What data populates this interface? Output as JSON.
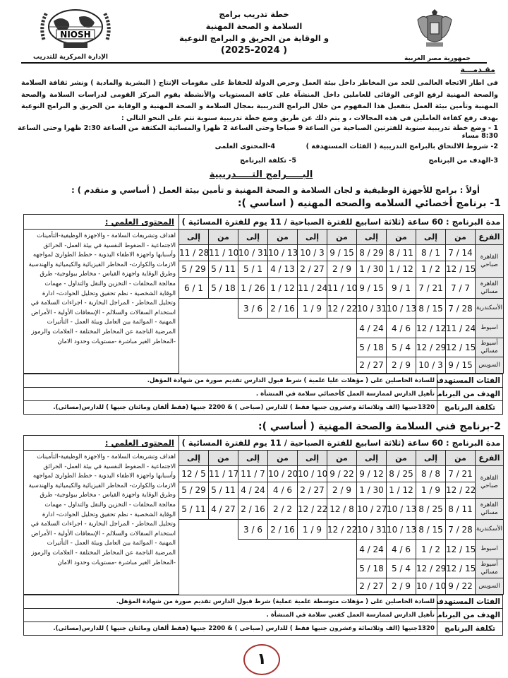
{
  "header": {
    "title_lines": [
      "خطة تدريب برامج",
      "السلامة و الصحة المهنية",
      "و الوقاية من الحريق و البرامج النوعية"
    ],
    "year": "( 2025-2024)",
    "org_right": "جمهورية مصر العربية",
    "org_left": "الإدارة المركزية للتدريب",
    "logo_left_text": "NIOSH"
  },
  "intro": {
    "title": "مقـدمـــة",
    "paragraph": "فى اطار الاتجاه العالمى للحد من المخاطر داخل بيئة العمل وحرص الدولة للحفاظ على مقومات الإنتاج ( البشرية والمادية ) ونشر ثقافة السلامة والصحة المهنية لرفع الوعى الوقائى للعاملين داخل المنشآة على كافة المستويات والأنشطة يقوم المركز القومى لدراسات السلامة والصحة المهنية وتأمين بيئة العمل بتفعيل هذا المفهوم من خلال البرامج التدريبية بمجال السلامة و الصحة المهنية و الوقاية من الحريق و البرامج النوعية بهدف رفع كفاءة العاملين فى هذه المجالات ، و يتم ذلك عن طريق وضع خطة تدريبية سنوية تتم على النحو التالى :",
    "item1": "1 - وضع خطة تدريبية سنوية للفترتين الصباحية من الساعة 9 صباحا وحتى الساعة 2 ظهرا والمسائية المكثفة من الساعة 2:30 ظهرا وحتى الساعة 8:30 مساء",
    "item2": "2-  شروط الالتحاق بالبرامج التدريبية  ( الفئات المستهدفة )",
    "item3": "3-الهدف من البرنامج",
    "item4": "4-المحتوى العلمى",
    "item5": "5- تكلفة البرنامج"
  },
  "section_title": "البـــــرامج التـــــدريبية",
  "first_heading": "أولاً  : برامج للأجهزة الوظيفية و لجان السلامة و الصحة المهنية و تأمين بيئة العمل ( أساسي و متقدم ) :",
  "content_text": "اهداف  وتشريعات السلامة - والاجهزة الوظيفية-التأمينات الاجتماعية - الضغوط النفسية في بيئة العمل- الحرائق وأسبابها واجهزة الاطفاء اليدوية - خطط الطوارئ لمواجهه الازمات والكوارث-  المخاطر الفيزيائية والكيميائية والهندسية وطرق الوقاية واجهزة القياس - مخاطر بيولوجية- طرق معالجة المخلفات - التخزين والنقل والتداول - مهمات الوقاية الشخصية - نظم تحقيق وتحليل الحوادث- ادارة وتحليل المخاطر - المراجل البخارية - اجراءات السلامة في استخدام السقالات والسلالم - الإسعافات الأولية - الأمراض المهنية - الموائمة بين العامل وبيئة العمل - التأثيرات المرضية الناجمة عن المخاطر المختلفة - العلامات والرموز -المخاطر الغير مباشرة -مستويات وحدود الامان",
  "programs": [
    {
      "title": "1- برنامج أخصائي السلامه والصحه المهنيه ( اساسي ):",
      "duration": "مدة البرنامج :   60 ساعة (ثلاثة اسابيع للفترة الصباحية / 11 يوم للفترة المسائية )",
      "content_title": "المحتوى العلمي :",
      "col_branch": "الفرع",
      "col_from": "من",
      "col_to": "إلى",
      "branches": {
        "cairo_morning": "القاهرة صباحي",
        "cairo_evening": "القاهرة مسائي",
        "alexandria": "الأسكندرية",
        "assiut": "اسيوط",
        "assiut_evening": "أسيوط مسائي",
        "suez": "السويس"
      },
      "rows": {
        "cairo_morning_1": [
          "7 / 14",
          "8 / 1",
          "8 / 11",
          "8 / 29",
          "9 / 15",
          "10 / 3",
          "10 / 13",
          "10 / 31",
          "11 / 10",
          "11 / 28"
        ],
        "cairo_morning_2": [
          "12 / 15",
          "1 / 2",
          "1 / 12",
          "1 / 30",
          "2 / 9",
          "2 / 27",
          "4 / 13",
          "5 / 1",
          "5 / 11",
          "5 / 29"
        ],
        "cairo_evening": [
          "7 / 7",
          "7 / 21",
          "9 / 1",
          "9 / 15",
          "11 / 10",
          "11 / 24",
          "1 / 12",
          "1 / 26",
          "5 / 18",
          "6 / 1"
        ],
        "alexandria": [
          "7 / 28",
          "8 / 15",
          "10 / 13",
          "10 / 31",
          "12 / 22",
          "1 / 9",
          "2 / 16",
          "3 / 6"
        ],
        "assiut": [
          "11 / 24",
          "12 / 12",
          "4 / 6",
          "4 / 24"
        ],
        "assiut_evening": [
          "12 / 15",
          "12 / 29",
          "5 / 4",
          "5 / 18"
        ],
        "suez": [
          "9 / 15",
          "10 / 3",
          "2 / 9",
          "2 / 27"
        ]
      },
      "target_label": "الفئات المستهدفة",
      "target": "للسادة الحاصلين على ( مؤهلات عليا علمية ) شرط قبول الدارس تقديم صورة من شهادة المؤهل.",
      "goal_label": "الهدف من البرنامج",
      "goal": "تأهيل الدارس لممارسة العمل  كأخصائي سلامة في المنشأة .",
      "cost_label": "تكلفة البرنامج",
      "cost": "1320جنيها (الف وثلاثمائة وعشرون جنيها فقط ) للدارس (صباحى ) & 2200 جنيها (فقط ألفان ومائتان جنيها ) للدارس(مسائى)."
    },
    {
      "title": "2-برنامج فني السلامة والصحة المهنية ( أساسي ):",
      "duration": "مدة البرنامج :   60 ساعة (ثلاثة اسابيع للفترة الصباحية / 11 يوم للفترة المسائية )",
      "content_title": "المحتوى العلمي :",
      "col_branch": "الفرع",
      "col_from": "من",
      "col_to": "إلى",
      "branches": {
        "cairo_morning": "القاهرة صباحي",
        "cairo_evening": "القاهرة مسائي",
        "alexandria": "الأسكندرية",
        "assiut": "اسيوط",
        "assiut_evening": "أسيوط مسائي",
        "suez": "السويس"
      },
      "rows": {
        "cairo_morning_1": [
          "7 / 21",
          "8 / 8",
          "8 / 25",
          "9 / 12",
          "9 / 22",
          "10 / 10",
          "10 / 20",
          "11 / 7",
          "11 / 17",
          "12 / 5"
        ],
        "cairo_morning_2": [
          "12 / 22",
          "1 / 9",
          "1 / 12",
          "1 / 30",
          "2 / 9",
          "2 / 27",
          "4 / 6",
          "4 / 24",
          "5 / 11",
          "5 / 29"
        ],
        "cairo_evening": [
          "8 / 11",
          "8 / 25",
          "10 / 13",
          "10 / 27",
          "12 / 8",
          "12 / 22",
          "2 / 2",
          "2 / 16",
          "4 / 27",
          "5 / 11"
        ],
        "alexandria": [
          "7 / 28",
          "8 / 15",
          "10 / 13",
          "10 / 31",
          "12 / 22",
          "1 / 9",
          "2 / 16",
          "3 / 6"
        ],
        "assiut": [
          "12 / 15",
          "1 / 2",
          "4 / 6",
          "4 / 24"
        ],
        "assiut_evening": [
          "12 / 15",
          "12 / 29",
          "5 / 4",
          "5 / 18"
        ],
        "suez": [
          "9 / 22",
          "10 / 10",
          "2 / 9",
          "2 / 27"
        ]
      },
      "target_label": "الفئات المستهدفة",
      "target": "للسادة الحاصلين على ( مؤهلات متوسطة علمية عملية) شرط قبول الدارس تقديم صورة من شهادة المؤهل.",
      "goal_label": "الهدف من البرنامج",
      "goal": "تأهيل الدارس لممارسة العمل كفني سلامة في المنشأة .",
      "cost_label": "تكلفة البرنامج",
      "cost": "1320جنيها (الف وثلاثمائة وعشرون جنيها فقط ) للدارس (صباحى ) & 2200 جنيها (فقط ألفان ومائتان جنيها ) للدارس(مسائى)."
    }
  ],
  "page_number": "١",
  "colors": {
    "header_cell": "#e2e2e2",
    "page_circle": "#a83232"
  }
}
